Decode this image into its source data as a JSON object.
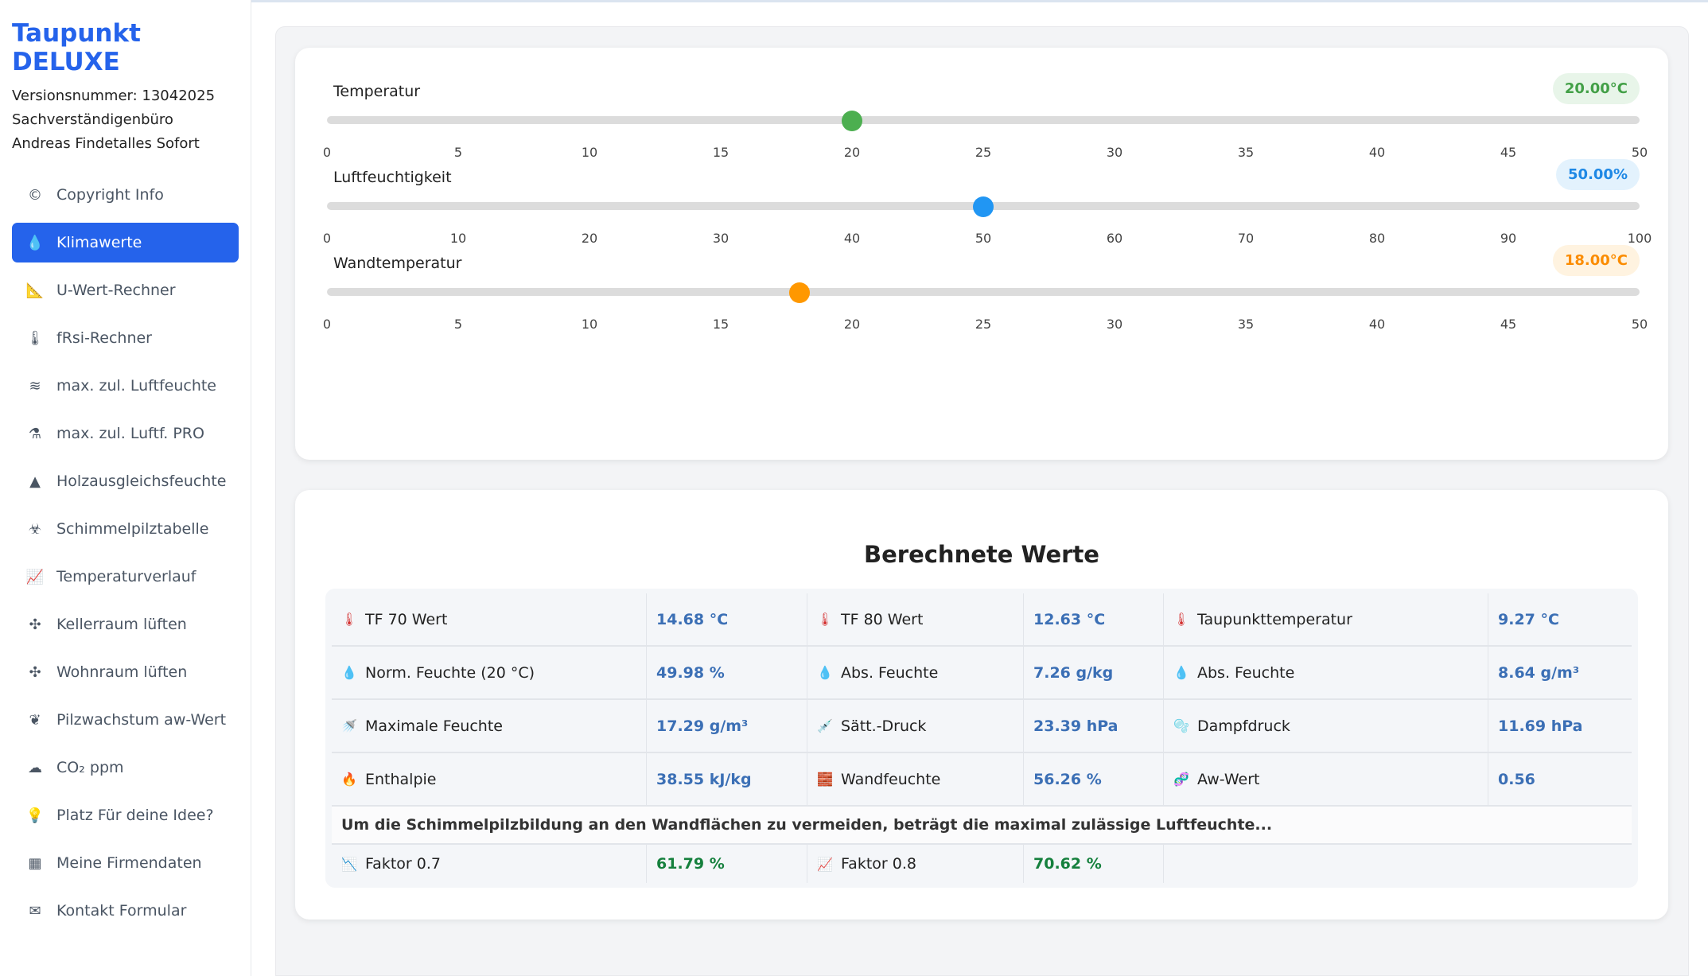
{
  "app": {
    "title": "Taupunkt DELUXE",
    "version": "Versionsnummer: 13042025",
    "office": "Sachverständigenbüro",
    "owner": "Andreas Findetalles Sofort"
  },
  "sidebar": {
    "items": [
      {
        "label": "Copyright Info",
        "icon": "copyright-icon"
      },
      {
        "label": "Klimawerte",
        "icon": "droplet-icon",
        "active": true
      },
      {
        "label": "U-Wert-Rechner",
        "icon": "ruler-icon"
      },
      {
        "label": "fRsi-Rechner",
        "icon": "thermometer-icon"
      },
      {
        "label": "max. zul. Luftfeuchte",
        "icon": "wind-icon"
      },
      {
        "label": "max. zul. Luftf. PRO",
        "icon": "flask-icon"
      },
      {
        "label": "Holzausgleichsfeuchte",
        "icon": "tree-icon"
      },
      {
        "label": "Schimmelpilztabelle",
        "icon": "biohazard-icon"
      },
      {
        "label": "Temperaturverlauf",
        "icon": "chart-line-icon"
      },
      {
        "label": "Kellerraum lüften",
        "icon": "fan-icon"
      },
      {
        "label": "Wohnraum lüften",
        "icon": "fan-icon"
      },
      {
        "label": "Pilzwachstum aw-Wert",
        "icon": "seedling-icon"
      },
      {
        "label": "CO₂ ppm",
        "icon": "smog-icon"
      },
      {
        "label": "Platz Für deine Idee?",
        "icon": "lightbulb-icon"
      },
      {
        "label": "Meine Firmendaten",
        "icon": "building-icon"
      },
      {
        "label": "Kontakt Formular",
        "icon": "envelope-icon"
      }
    ]
  },
  "sliders": [
    {
      "label": "Temperatur",
      "value": 20,
      "min": 0,
      "max": 50,
      "badge": "20.00°C",
      "color": "#4caf50",
      "badge_bg": "#e8f5e9",
      "badge_fg": "#43a047",
      "ticks": [
        "0",
        "5",
        "10",
        "15",
        "20",
        "25",
        "30",
        "35",
        "40",
        "45",
        "50"
      ]
    },
    {
      "label": "Luftfeuchtigkeit",
      "value": 50,
      "min": 0,
      "max": 100,
      "badge": "50.00%",
      "color": "#2196f3",
      "badge_bg": "#e3f2fd",
      "badge_fg": "#1e88e5",
      "ticks": [
        "0",
        "10",
        "20",
        "30",
        "40",
        "50",
        "60",
        "70",
        "80",
        "90",
        "100"
      ]
    },
    {
      "label": "Wandtemperatur",
      "value": 18,
      "min": 0,
      "max": 50,
      "badge": "18.00°C",
      "color": "#ff9800",
      "badge_bg": "#fff3e0",
      "badge_fg": "#fb8c00",
      "ticks": [
        "0",
        "5",
        "10",
        "15",
        "20",
        "25",
        "30",
        "35",
        "40",
        "45",
        "50"
      ]
    }
  ],
  "results": {
    "title": "Berechnete Werte",
    "rows": [
      [
        {
          "label": "TF 70 Wert",
          "value": "14.68 °C",
          "icon": "thermometer-icon"
        },
        {
          "label": "TF 80 Wert",
          "value": "12.63 °C",
          "icon": "thermometer-icon"
        },
        {
          "label": "Taupunkttemperatur",
          "value": "9.27 °C",
          "icon": "thermometer-icon"
        }
      ],
      [
        {
          "label": "Norm. Feuchte (20 °C)",
          "value": "49.98 %",
          "icon": "droplet-icon"
        },
        {
          "label": "Abs. Feuchte",
          "value": "7.26 g/kg",
          "icon": "droplet-icon"
        },
        {
          "label": "Abs. Feuchte",
          "value": "8.64 g/m³",
          "icon": "droplet-icon"
        }
      ],
      [
        {
          "label": "Maximale Feuchte",
          "value": "17.29 g/m³",
          "icon": "shower-icon"
        },
        {
          "label": "Sätt.-Druck",
          "value": "23.39 hPa",
          "icon": "syringe-icon"
        },
        {
          "label": "Dampfdruck",
          "value": "11.69 hPa",
          "icon": "bubbles-icon"
        }
      ],
      [
        {
          "label": "Enthalpie",
          "value": "38.55 kJ/kg",
          "icon": "fire-icon"
        },
        {
          "label": "Wandfeuchte",
          "value": "56.26 %",
          "icon": "brick-icon"
        },
        {
          "label": "Aw-Wert",
          "value": "0.56",
          "icon": "dna-icon"
        }
      ]
    ],
    "notice": "Um die Schimmelpilzbildung an den Wandflächen zu vermeiden, beträgt die maximal zulässige Luftfeuchte...",
    "factors": [
      {
        "label": "Faktor 0.7",
        "value": "61.79 %",
        "icon": "chart-down-icon"
      },
      {
        "label": "Faktor 0.8",
        "value": "70.62 %",
        "icon": "chart-up-icon"
      }
    ]
  }
}
